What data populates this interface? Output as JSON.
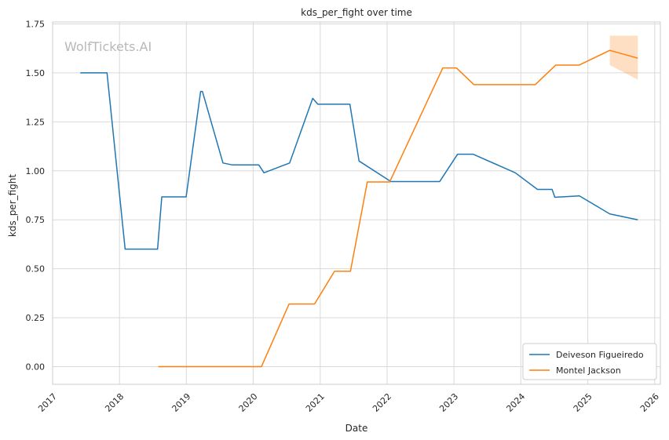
{
  "chart_data": {
    "type": "line",
    "title": "kds_per_fight over time",
    "xlabel": "Date",
    "ylabel": "kds_per_fight",
    "watermark": "WolfTickets.AI",
    "x_ticks": [
      "2017",
      "2018",
      "2019",
      "2020",
      "2021",
      "2022",
      "2023",
      "2024",
      "2025",
      "2026"
    ],
    "y_ticks": [
      "0.00",
      "0.25",
      "0.50",
      "0.75",
      "1.00",
      "1.25",
      "1.50",
      "1.75"
    ],
    "xlim": [
      "2017-01-01",
      "2026-02-01"
    ],
    "ylim": [
      -0.09,
      1.76
    ],
    "grid": true,
    "legend_position": "lower right",
    "series": [
      {
        "name": "Deiveson Figueiredo",
        "color": "#1f77b4",
        "points": [
          {
            "x": "2017-06-01",
            "y": 1.5
          },
          {
            "x": "2017-10-25",
            "y": 1.5
          },
          {
            "x": "2018-02-01",
            "y": 0.6
          },
          {
            "x": "2018-07-28",
            "y": 0.6
          },
          {
            "x": "2018-08-20",
            "y": 0.867
          },
          {
            "x": "2018-12-31",
            "y": 0.867
          },
          {
            "x": "2019-03-20",
            "y": 1.405
          },
          {
            "x": "2019-03-30",
            "y": 1.405
          },
          {
            "x": "2019-07-20",
            "y": 1.04
          },
          {
            "x": "2019-09-10",
            "y": 1.03
          },
          {
            "x": "2020-02-01",
            "y": 1.03
          },
          {
            "x": "2020-02-29",
            "y": 0.99
          },
          {
            "x": "2020-07-18",
            "y": 1.04
          },
          {
            "x": "2020-11-21",
            "y": 1.37
          },
          {
            "x": "2020-12-19",
            "y": 1.34
          },
          {
            "x": "2021-06-12",
            "y": 1.34
          },
          {
            "x": "2021-08-01",
            "y": 1.05
          },
          {
            "x": "2022-01-22",
            "y": 0.945
          },
          {
            "x": "2022-10-15",
            "y": 0.945
          },
          {
            "x": "2023-01-21",
            "y": 1.085
          },
          {
            "x": "2023-04-15",
            "y": 1.085
          },
          {
            "x": "2023-12-02",
            "y": 0.99
          },
          {
            "x": "2024-04-01",
            "y": 0.905
          },
          {
            "x": "2024-06-20",
            "y": 0.905
          },
          {
            "x": "2024-07-05",
            "y": 0.865
          },
          {
            "x": "2024-11-16",
            "y": 0.872
          },
          {
            "x": "2025-05-01",
            "y": 0.78
          },
          {
            "x": "2025-10-01",
            "y": 0.75
          }
        ]
      },
      {
        "name": "Montel Jackson",
        "color": "#ff7f0e",
        "points": [
          {
            "x": "2018-08-01",
            "y": 0.0
          },
          {
            "x": "2020-02-15",
            "y": 0.0
          },
          {
            "x": "2020-07-15",
            "y": 0.32
          },
          {
            "x": "2020-12-01",
            "y": 0.32
          },
          {
            "x": "2021-03-20",
            "y": 0.487
          },
          {
            "x": "2021-06-15",
            "y": 0.487
          },
          {
            "x": "2021-09-15",
            "y": 0.943
          },
          {
            "x": "2022-01-15",
            "y": 0.943
          },
          {
            "x": "2022-11-01",
            "y": 1.525
          },
          {
            "x": "2023-01-15",
            "y": 1.525
          },
          {
            "x": "2023-04-20",
            "y": 1.44
          },
          {
            "x": "2024-03-20",
            "y": 1.44
          },
          {
            "x": "2024-07-10",
            "y": 1.54
          },
          {
            "x": "2024-11-15",
            "y": 1.54
          },
          {
            "x": "2025-05-01",
            "y": 1.615
          },
          {
            "x": "2025-10-01",
            "y": 1.575
          }
        ],
        "band": [
          {
            "x": "2025-05-01",
            "low": 1.54,
            "high": 1.69
          },
          {
            "x": "2025-10-01",
            "low": 1.465,
            "high": 1.69
          }
        ]
      }
    ]
  }
}
